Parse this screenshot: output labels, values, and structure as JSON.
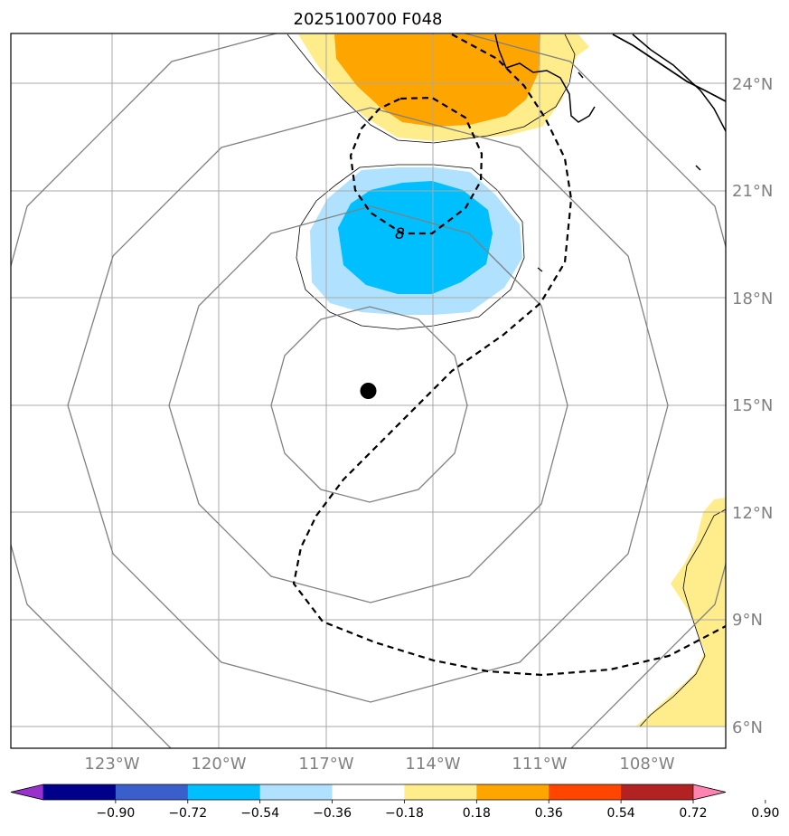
{
  "chart_data": {
    "type": "map",
    "title": "2025100700 F048",
    "lon_range": [
      -126,
      -106
    ],
    "lat_range": [
      5.4,
      25.4
    ],
    "lon_ticks": [
      {
        "value": -123,
        "label": "123°W"
      },
      {
        "value": -120,
        "label": "120°W"
      },
      {
        "value": -117,
        "label": "117°W"
      },
      {
        "value": -114,
        "label": "114°W"
      },
      {
        "value": -111,
        "label": "111°W"
      },
      {
        "value": -108,
        "label": "108°W"
      }
    ],
    "lat_ticks": [
      {
        "value": 6,
        "label": "6°N"
      },
      {
        "value": 9,
        "label": "9°N"
      },
      {
        "value": 12,
        "label": "12°N"
      },
      {
        "value": 15,
        "label": "15°N"
      },
      {
        "value": 18,
        "label": "18°N"
      },
      {
        "value": 21,
        "label": "21°N"
      },
      {
        "value": 24,
        "label": "24°N"
      }
    ],
    "grid": true,
    "storm_center": {
      "lon": -116.0,
      "lat": 15.4
    },
    "contour_label": {
      "text": "8",
      "lon": -115.1,
      "lat": 19.8
    },
    "colorbar": {
      "levels": [
        "−0.90",
        "−0.72",
        "−0.54",
        "−0.36",
        "−0.18",
        "0.18",
        "0.36",
        "0.54",
        "0.72",
        "0.90"
      ],
      "colors": [
        "#9932cc",
        "#00008b",
        "#3a5fcd",
        "#00bfff",
        "#b0e2ff",
        "#ffffff",
        "#ffec8b",
        "#ffa500",
        "#ff4500",
        "#b22222",
        "#ff83b0"
      ]
    }
  }
}
